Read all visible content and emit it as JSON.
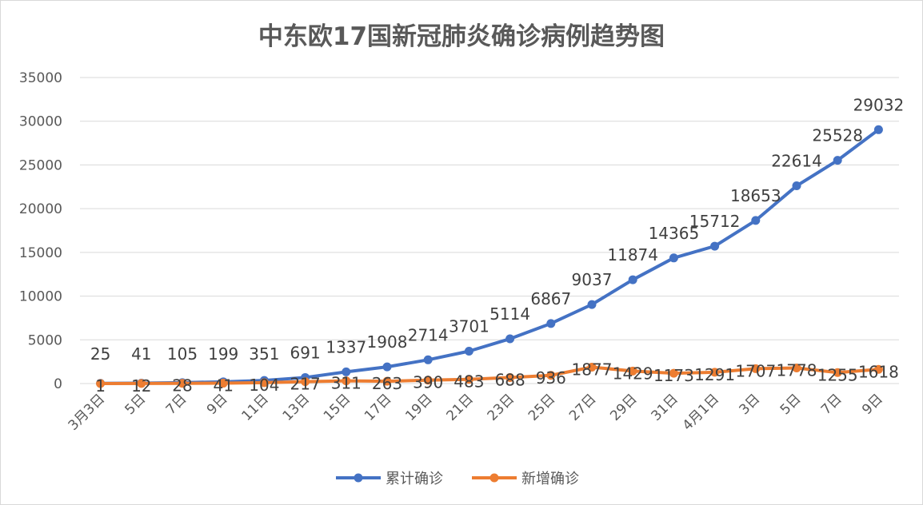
{
  "chart_data": {
    "type": "line",
    "title": "中东欧17国新冠肺炎确诊病例趋势图",
    "categories": [
      "3月3日",
      "5日",
      "7日",
      "9日",
      "11日",
      "13日",
      "15日",
      "17日",
      "19日",
      "21日",
      "23日",
      "25日",
      "27日",
      "29日",
      "31日",
      "4月1日",
      "3日",
      "5日",
      "7日",
      "9日"
    ],
    "series": [
      {
        "name": "累计确诊",
        "color": "#4472C4",
        "values": [
          25,
          41,
          105,
          199,
          351,
          691,
          1337,
          1908,
          2714,
          3701,
          5114,
          6867,
          9037,
          11874,
          14365,
          15712,
          18653,
          22614,
          25528,
          29032
        ]
      },
      {
        "name": "新增确诊",
        "color": "#ED7D31",
        "values": [
          1,
          12,
          28,
          41,
          104,
          217,
          311,
          263,
          390,
          483,
          688,
          936,
          1877,
          1429,
          1173,
          1291,
          1707,
          1778,
          1255,
          1618
        ]
      }
    ],
    "ylim": [
      0,
      35000
    ],
    "yticks": [
      0,
      5000,
      10000,
      15000,
      20000,
      25000,
      30000,
      35000
    ],
    "grid": true,
    "legend": "bottom"
  }
}
